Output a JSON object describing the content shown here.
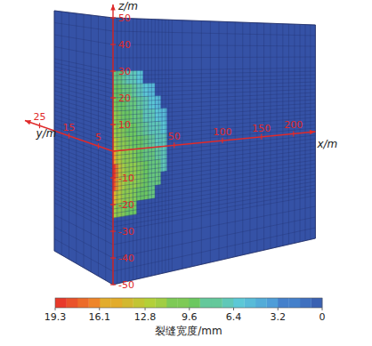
{
  "chart_data": {
    "type": "contour3d",
    "x_label": "x/m",
    "y_label": "y/m",
    "z_label": "z/m",
    "xlim": [
      0,
      240
    ],
    "ylim": [
      0,
      30
    ],
    "zlim": [
      -50,
      55
    ],
    "xticks": [
      50,
      100,
      150,
      200
    ],
    "yticks": [
      5,
      15,
      25
    ],
    "zticks": [
      -50,
      -40,
      -30,
      -20,
      -10,
      10,
      20,
      30,
      40,
      50
    ],
    "mesh_extent": {
      "x": [
        0,
        240
      ],
      "y": [
        0,
        20
      ],
      "z": [
        -50,
        50
      ]
    },
    "cells": {
      "x_edges": [
        0,
        2,
        4,
        7,
        10,
        14,
        18,
        23,
        28,
        33,
        38,
        43
      ],
      "z_edges": [
        30,
        25,
        20,
        15,
        10,
        5,
        0,
        -5,
        -10,
        -15,
        -20,
        -25
      ],
      "values": [
        [
          9,
          9,
          8.5,
          8,
          7.5,
          7,
          6.5,
          0,
          0,
          0,
          0
        ],
        [
          10,
          10,
          9.5,
          9,
          8.5,
          8,
          7,
          6.5,
          6,
          0,
          0
        ],
        [
          10.5,
          10.5,
          10,
          9.5,
          9,
          8.5,
          8,
          7,
          6.5,
          6,
          0
        ],
        [
          11,
          11,
          10.5,
          10,
          9.5,
          9,
          8.5,
          7.5,
          7,
          6.5,
          6
        ],
        [
          12,
          11.5,
          11,
          10.5,
          10,
          9.5,
          9,
          8,
          7.5,
          7,
          6.5
        ],
        [
          13.5,
          12.5,
          11.5,
          11,
          10.5,
          10,
          9.5,
          8.5,
          8,
          7.5,
          7
        ],
        [
          16,
          14,
          12.5,
          11.5,
          11,
          10.5,
          10,
          9,
          8.5,
          8,
          7
        ],
        [
          19.3,
          16.5,
          13.5,
          12,
          11.5,
          11,
          10.5,
          9.5,
          9,
          8.5,
          7.5
        ],
        [
          18.5,
          16,
          13.5,
          12,
          11.5,
          11,
          10.5,
          9.5,
          9,
          8.5,
          0
        ],
        [
          15,
          13.5,
          12.5,
          11.5,
          11,
          10.5,
          10,
          9.5,
          9,
          0,
          0
        ],
        [
          12,
          11.5,
          11,
          10.5,
          10,
          9.5,
          0,
          0,
          0,
          0,
          0
        ]
      ]
    },
    "colorbar": {
      "label": "裂缝宽度/mm",
      "range": [
        0,
        19.3
      ],
      "ticks": [
        19.3,
        16.1,
        12.8,
        9.6,
        6.4,
        3.2,
        0
      ]
    }
  }
}
